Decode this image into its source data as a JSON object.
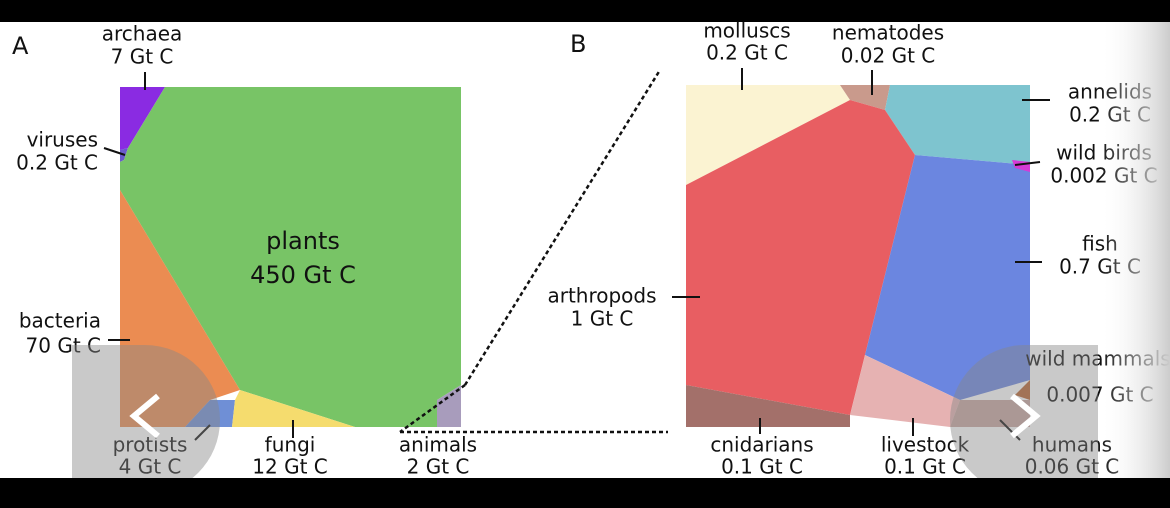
{
  "panel_a": {
    "label": "A",
    "cells": [
      {
        "name": "archaea",
        "amount": "7 Gt C"
      },
      {
        "name": "viruses",
        "amount": "0.2 Gt C"
      },
      {
        "name": "plants",
        "amount": "450 Gt C"
      },
      {
        "name": "bacteria",
        "amount": "70 Gt C"
      },
      {
        "name": "protists",
        "amount": "4 Gt C"
      },
      {
        "name": "fungi",
        "amount": "12 Gt C"
      },
      {
        "name": "animals",
        "amount": "2 Gt C"
      }
    ]
  },
  "panel_b": {
    "label": "B",
    "cells": [
      {
        "name": "molluscs",
        "amount": "0.2 Gt C"
      },
      {
        "name": "nematodes",
        "amount": "0.02 Gt C"
      },
      {
        "name": "annelids",
        "amount": "0.2 Gt C"
      },
      {
        "name": "wild birds",
        "amount": "0.002 Gt C"
      },
      {
        "name": "fish",
        "amount": "0.7 Gt C"
      },
      {
        "name": "arthropods",
        "amount": "1 Gt C"
      },
      {
        "name": "wild mammals",
        "amount": "0.007 Gt C"
      },
      {
        "name": "cnidarians",
        "amount": "0.1 Gt C"
      },
      {
        "name": "livestock",
        "amount": "0.1 Gt C"
      },
      {
        "name": "humans",
        "amount": "0.06 Gt C"
      }
    ]
  }
}
